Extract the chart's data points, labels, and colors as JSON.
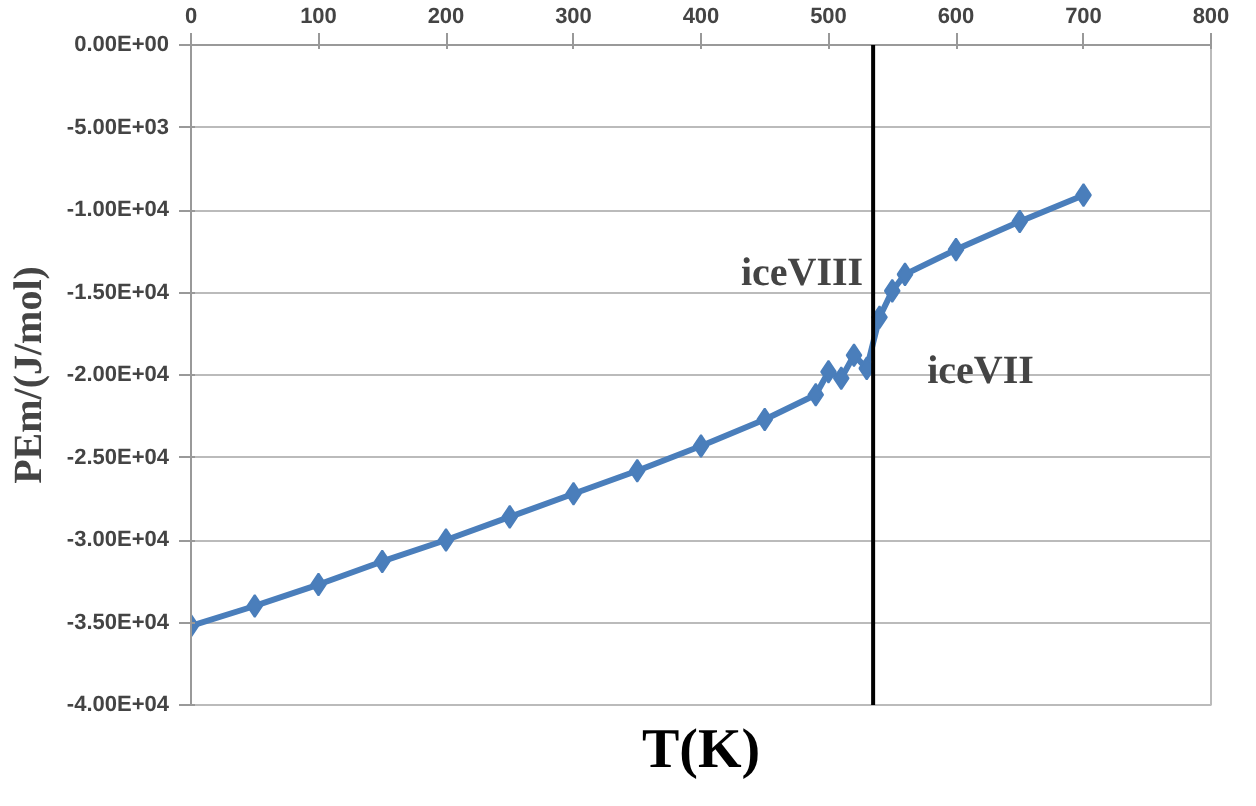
{
  "chart_data": {
    "type": "line",
    "xlabel": "T(K)",
    "ylabel": "PEm/(J/mol)",
    "x": [
      0,
      50,
      100,
      150,
      200,
      250,
      300,
      350,
      400,
      450,
      490,
      500,
      510,
      520,
      530,
      540,
      550,
      560,
      600,
      650,
      700
    ],
    "series": [
      {
        "color": "#4a7ebb",
        "values": [
          -35200,
          -34000,
          -32700,
          -31300,
          -30000,
          -28600,
          -27200,
          -25800,
          -24300,
          -22700,
          -21200,
          -19800,
          -20200,
          -18800,
          -19600,
          -16500,
          -14900,
          -13900,
          -12400,
          -10700,
          -9100
        ]
      }
    ],
    "xlim": [
      0,
      800
    ],
    "ylim": [
      -40000,
      0
    ],
    "xticks": [
      0,
      100,
      200,
      300,
      400,
      500,
      600,
      700,
      800
    ],
    "yticks": [
      {
        "value": 0,
        "label": "0.00E+00"
      },
      {
        "value": -5000,
        "label": "-5.00E+03"
      },
      {
        "value": -10000,
        "label": "-1.00E+04"
      },
      {
        "value": -15000,
        "label": "-1.50E+04"
      },
      {
        "value": -20000,
        "label": "-2.00E+04"
      },
      {
        "value": -25000,
        "label": "-2.50E+04"
      },
      {
        "value": -30000,
        "label": "-3.00E+04"
      },
      {
        "value": -35000,
        "label": "-3.50E+04"
      },
      {
        "value": -40000,
        "label": "-4.00E+04"
      }
    ],
    "ref_lines": [
      {
        "axis": "x",
        "value": 535,
        "color": "#000000"
      }
    ],
    "annotations": [
      "iceVIII",
      "iceVII"
    ],
    "grid": "y",
    "marker": "diamond",
    "line_style": "solid"
  }
}
